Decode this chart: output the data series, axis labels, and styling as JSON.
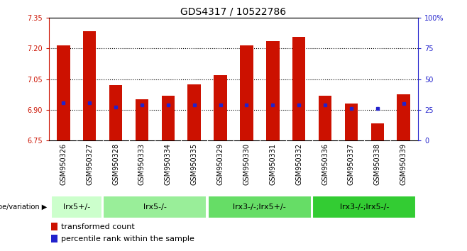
{
  "title": "GDS4317 / 10522786",
  "samples": [
    "GSM950326",
    "GSM950327",
    "GSM950328",
    "GSM950333",
    "GSM950334",
    "GSM950335",
    "GSM950329",
    "GSM950330",
    "GSM950331",
    "GSM950332",
    "GSM950336",
    "GSM950337",
    "GSM950338",
    "GSM950339"
  ],
  "red_tops": [
    7.215,
    7.285,
    7.02,
    6.95,
    6.97,
    7.025,
    7.07,
    7.215,
    7.235,
    7.255,
    6.97,
    6.93,
    6.835,
    6.975
  ],
  "blue_y": [
    6.935,
    6.935,
    6.913,
    6.925,
    6.925,
    6.925,
    6.925,
    6.925,
    6.925,
    6.925,
    6.925,
    6.908,
    6.908,
    6.93
  ],
  "ylim_low": 6.75,
  "ylim_high": 7.35,
  "yticks": [
    6.75,
    6.9,
    7.05,
    7.2,
    7.35
  ],
  "right_yticks": [
    0,
    25,
    50,
    75,
    100
  ],
  "bar_color": "#cc1100",
  "dot_color": "#2222cc",
  "groups": [
    {
      "label": "lrx5+/-",
      "n": 2,
      "color": "#ccffcc"
    },
    {
      "label": "lrx5-/-",
      "n": 4,
      "color": "#99ee99"
    },
    {
      "label": "lrx3-/-;lrx5+/-",
      "n": 4,
      "color": "#66dd66"
    },
    {
      "label": "lrx3-/-;lrx5-/-",
      "n": 4,
      "color": "#33cc33"
    }
  ],
  "legend_red_label": "transformed count",
  "legend_blue_label": "percentile rank within the sample",
  "genotype_label": "genotype/variation",
  "bar_bottom": 6.75,
  "grid_color": "black",
  "title_fontsize": 10,
  "tick_fontsize": 7,
  "label_fontsize": 8,
  "group_label_fontsize": 8,
  "bar_width": 0.5
}
